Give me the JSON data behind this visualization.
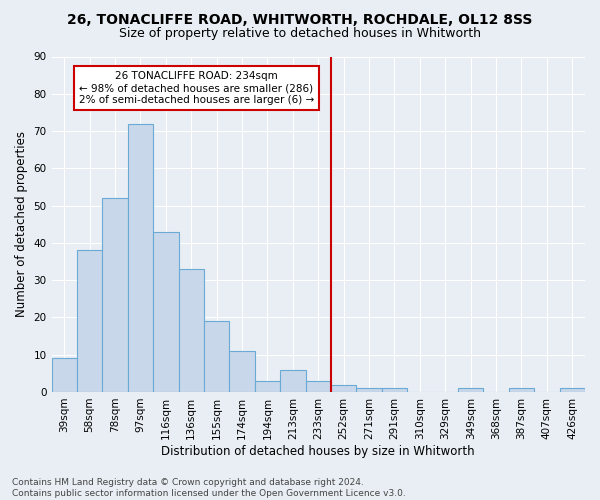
{
  "title1": "26, TONACLIFFE ROAD, WHITWORTH, ROCHDALE, OL12 8SS",
  "title2": "Size of property relative to detached houses in Whitworth",
  "xlabel": "Distribution of detached houses by size in Whitworth",
  "ylabel": "Number of detached properties",
  "footer": "Contains HM Land Registry data © Crown copyright and database right 2024.\nContains public sector information licensed under the Open Government Licence v3.0.",
  "categories": [
    "39sqm",
    "58sqm",
    "78sqm",
    "97sqm",
    "116sqm",
    "136sqm",
    "155sqm",
    "174sqm",
    "194sqm",
    "213sqm",
    "233sqm",
    "252sqm",
    "271sqm",
    "291sqm",
    "310sqm",
    "329sqm",
    "349sqm",
    "368sqm",
    "387sqm",
    "407sqm",
    "426sqm"
  ],
  "values": [
    9,
    38,
    52,
    72,
    43,
    33,
    19,
    11,
    3,
    6,
    3,
    2,
    1,
    1,
    0,
    0,
    1,
    0,
    1,
    0,
    1
  ],
  "bar_color": "#c8d8ea",
  "bar_edge_color": "#6aaad4",
  "vline_x_index": 10,
  "vline_color": "#cc0000",
  "annotation_text": "26 TONACLIFFE ROAD: 234sqm\n← 98% of detached houses are smaller (286)\n2% of semi-detached houses are larger (6) →",
  "annotation_box_color": "#cc0000",
  "annotation_fill": "#ffffff",
  "ylim": [
    0,
    90
  ],
  "yticks": [
    0,
    10,
    20,
    30,
    40,
    50,
    60,
    70,
    80,
    90
  ],
  "title1_fontsize": 10,
  "title2_fontsize": 9,
  "xlabel_fontsize": 8.5,
  "ylabel_fontsize": 8.5,
  "tick_fontsize": 7.5,
  "footer_fontsize": 6.5,
  "annotation_fontsize": 7.5,
  "background_color": "#e8eef4",
  "plot_bg_color": "#e8eef4"
}
